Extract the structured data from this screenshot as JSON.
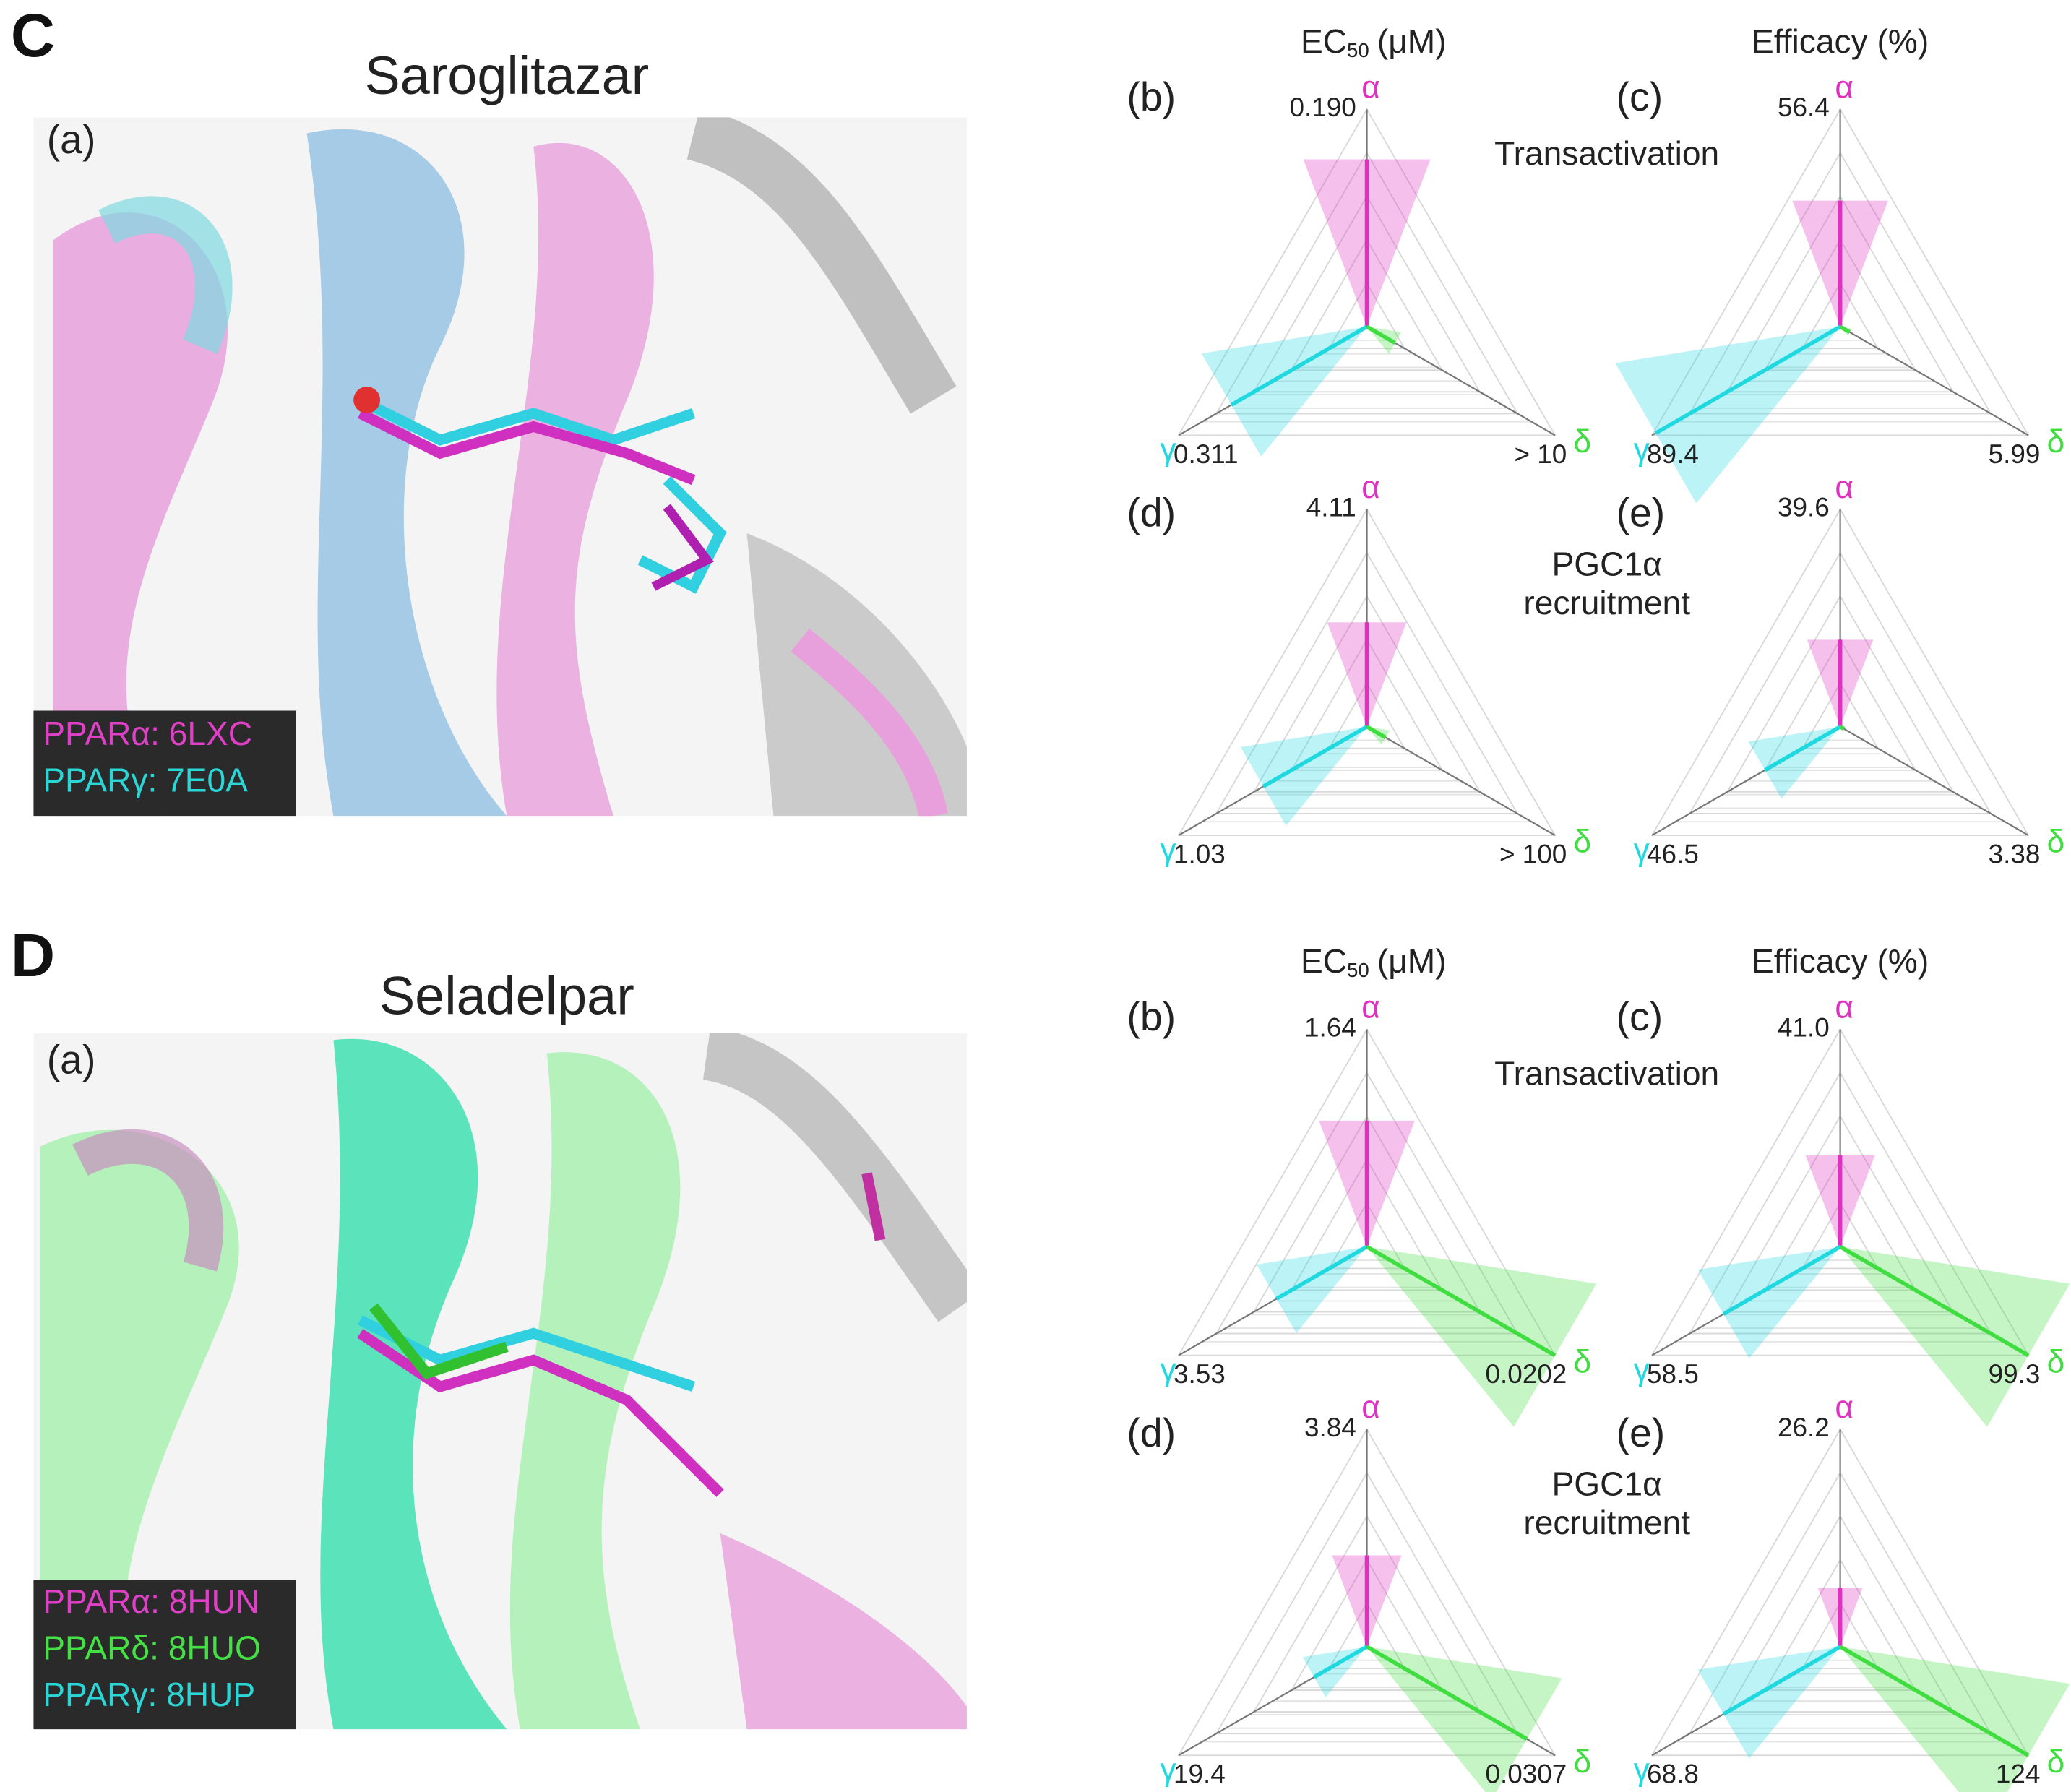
{
  "figure": [
    {
      "letter": "C",
      "compound": "Saroglitazar",
      "structure_label": "(a)",
      "legend": [
        {
          "text": "PPARα: 6LXC",
          "color": "#e040c8"
        },
        {
          "text": "PPARγ: 7E0A",
          "color": "#2ad6d6"
        }
      ],
      "column_headers": [
        {
          "text": "EC",
          "subscript": "50",
          "unit": "(μM)"
        },
        {
          "text": "Efficacy (%)"
        }
      ],
      "row_labels": [
        [
          "Transactivation"
        ],
        [
          "PGC1α",
          "recruitment"
        ]
      ],
      "radars": [
        {
          "label": "(b)",
          "alpha": "0.190",
          "gamma": "0.311",
          "delta": "> 10"
        },
        {
          "label": "(c)",
          "alpha": "56.4",
          "gamma": "89.4",
          "delta": "5.99"
        },
        {
          "label": "(d)",
          "alpha": "4.11",
          "gamma": "1.03",
          "delta": "> 100"
        },
        {
          "label": "(e)",
          "alpha": "39.6",
          "gamma": "46.5",
          "delta": "3.38"
        }
      ]
    },
    {
      "letter": "D",
      "compound": "Seladelpar",
      "structure_label": "(a)",
      "legend": [
        {
          "text": "PPARα: 8HUN",
          "color": "#e040c8"
        },
        {
          "text": "PPARδ: 8HUO",
          "color": "#44e044"
        },
        {
          "text": "PPARγ: 8HUP",
          "color": "#2ad6d6"
        }
      ],
      "column_headers": [
        {
          "text": "EC",
          "subscript": "50",
          "unit": "(μM)"
        },
        {
          "text": "Efficacy (%)"
        }
      ],
      "row_labels": [
        [
          "Transactivation"
        ],
        [
          "PGC1α",
          "recruitment"
        ]
      ],
      "radars": [
        {
          "label": "(b)",
          "alpha": "1.64",
          "gamma": "3.53",
          "delta": "0.0202"
        },
        {
          "label": "(c)",
          "alpha": "41.0",
          "gamma": "58.5",
          "delta": "99.3"
        },
        {
          "label": "(d)",
          "alpha": "3.84",
          "gamma": "19.4",
          "delta": "0.0307"
        },
        {
          "label": "(e)",
          "alpha": "26.2",
          "gamma": "68.8",
          "delta": "124"
        }
      ]
    }
  ],
  "axis_symbols": {
    "alpha": "α",
    "gamma": "γ",
    "delta": "δ"
  }
}
